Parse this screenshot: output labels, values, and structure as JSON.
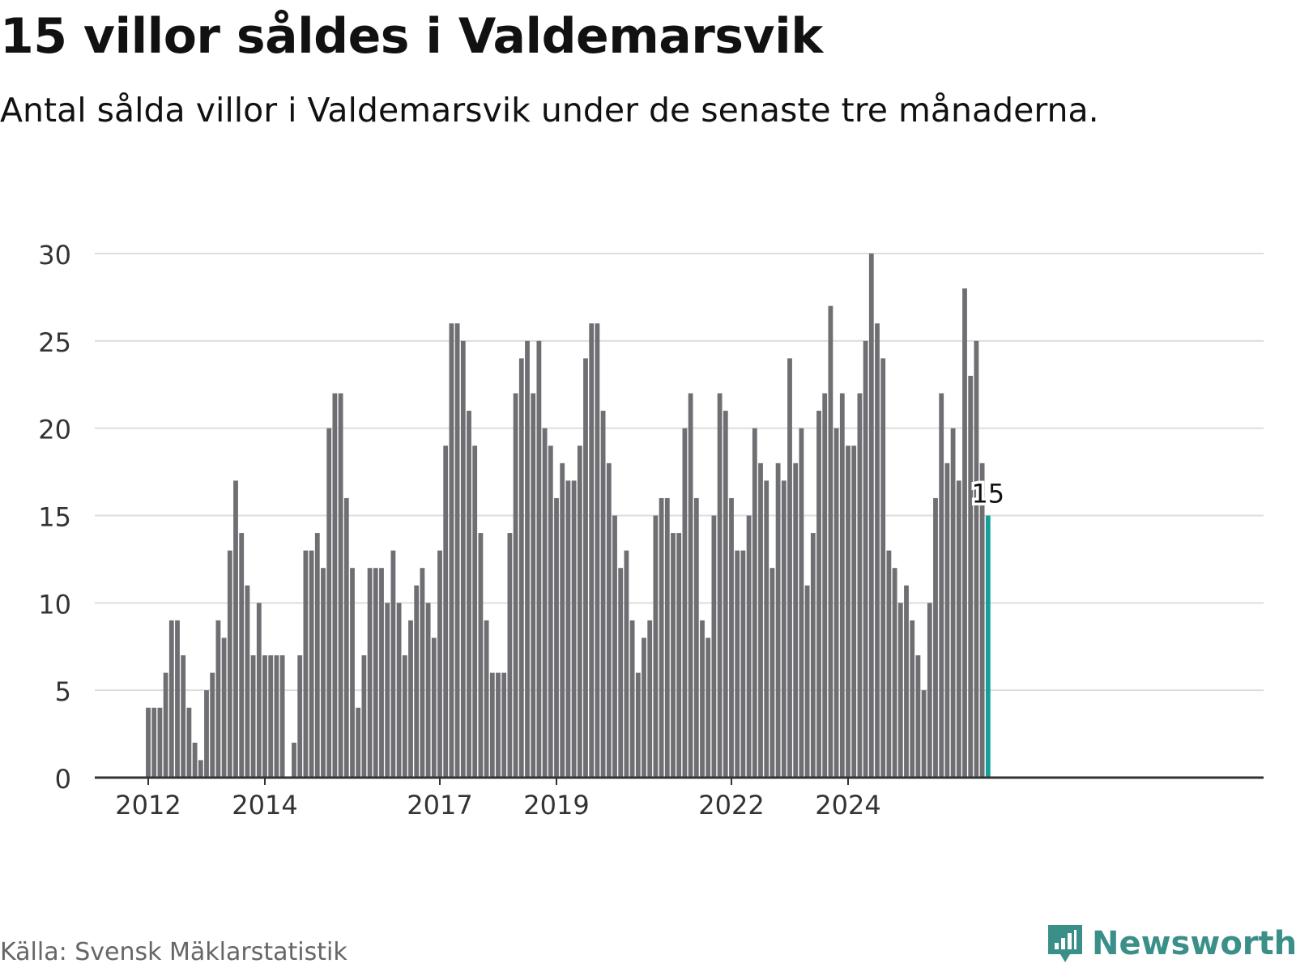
{
  "title": "15 villor såldes i Valdemarsvik",
  "subtitle": "Antal sålda villor i Valdemarsvik under de senaste tre månaderna.",
  "source": "Källa: Svensk Mäklarstatistik",
  "brand": "Newsworthy",
  "colors": {
    "bar": "#6e6e73",
    "highlight": "#14a09a",
    "grid": "#dddddd",
    "axis": "#333333",
    "brand": "#3a8f89"
  },
  "chart_data": {
    "type": "bar",
    "title": "15 villor såldes i Valdemarsvik",
    "xlabel": "",
    "ylabel": "",
    "ylim": [
      0,
      30
    ],
    "yticks": [
      0,
      5,
      10,
      15,
      20,
      25,
      30
    ],
    "xticks": [
      {
        "label": "2012",
        "index": 0
      },
      {
        "label": "2014",
        "index": 20
      },
      {
        "label": "2017",
        "index": 50
      },
      {
        "label": "2019",
        "index": 70
      },
      {
        "label": "2022",
        "index": 100
      },
      {
        "label": "2024",
        "index": 120
      }
    ],
    "highlight_label": "15",
    "values": [
      4,
      4,
      4,
      6,
      9,
      9,
      7,
      4,
      2,
      1,
      5,
      6,
      9,
      8,
      13,
      17,
      14,
      11,
      7,
      10,
      7,
      7,
      7,
      7,
      0,
      2,
      7,
      13,
      13,
      14,
      12,
      20,
      22,
      22,
      16,
      12,
      4,
      7,
      12,
      12,
      12,
      10,
      13,
      10,
      7,
      9,
      11,
      12,
      10,
      8,
      13,
      19,
      26,
      26,
      25,
      21,
      19,
      14,
      9,
      6,
      6,
      6,
      14,
      22,
      24,
      25,
      22,
      25,
      20,
      19,
      16,
      18,
      17,
      17,
      19,
      24,
      26,
      26,
      21,
      18,
      15,
      12,
      13,
      9,
      6,
      8,
      9,
      15,
      16,
      16,
      14,
      14,
      20,
      22,
      16,
      9,
      8,
      15,
      22,
      21,
      16,
      13,
      13,
      15,
      20,
      18,
      17,
      12,
      18,
      17,
      24,
      18,
      20,
      11,
      14,
      21,
      22,
      27,
      20,
      22,
      19,
      19,
      22,
      25,
      30,
      26,
      24,
      13,
      12,
      10,
      11,
      9,
      7,
      5,
      10,
      16,
      22,
      18,
      20,
      17,
      28,
      23,
      25,
      18,
      15
    ]
  }
}
